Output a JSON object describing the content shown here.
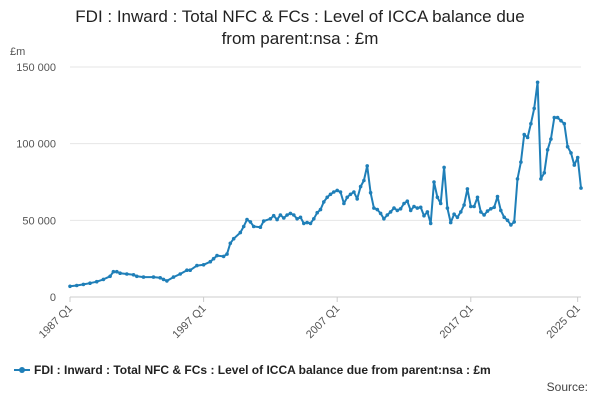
{
  "chart_data": {
    "type": "line",
    "title_line1": "FDI : Inward : Total NFC & FCs : Level of ICCA balance due",
    "title_line2": "from parent:nsa : £m",
    "y_unit": "£m",
    "ylim": [
      0,
      150000
    ],
    "y_ticks": [
      {
        "value": 0,
        "label": "0"
      },
      {
        "value": 50000,
        "label": "50 000"
      },
      {
        "value": 100000,
        "label": "100 000"
      },
      {
        "value": 150000,
        "label": "150 000"
      }
    ],
    "x_ticks": [
      {
        "quarter_index": 0,
        "label": "1987 Q1"
      },
      {
        "quarter_index": 40,
        "label": "1997 Q1"
      },
      {
        "quarter_index": 80,
        "label": "2007 Q1"
      },
      {
        "quarter_index": 120,
        "label": "2017 Q1"
      },
      {
        "quarter_index": 152,
        "label": "2025 Q1"
      }
    ],
    "x_start": "1987 Q1",
    "x_end": "2025 Q1",
    "grid": true,
    "legend_position": "bottom",
    "series": [
      {
        "name": "FDI : Inward : Total NFC & FCs : Level of ICCA balance due from parent:nsa : £m",
        "color": "#1f7fb8",
        "points": [
          [
            0,
            7000
          ],
          [
            2,
            7500
          ],
          [
            4,
            8200
          ],
          [
            6,
            9000
          ],
          [
            8,
            10000
          ],
          [
            10,
            11500
          ],
          [
            12,
            13500
          ],
          [
            13,
            16500
          ],
          [
            14,
            16500
          ],
          [
            15,
            15500
          ],
          [
            17,
            15000
          ],
          [
            19,
            14500
          ],
          [
            20,
            13500
          ],
          [
            22,
            13000
          ],
          [
            25,
            13000
          ],
          [
            27,
            12500
          ],
          [
            28,
            11500
          ],
          [
            29,
            10500
          ],
          [
            31,
            13000
          ],
          [
            33,
            15000
          ],
          [
            35,
            17500
          ],
          [
            36,
            17500
          ],
          [
            38,
            20500
          ],
          [
            40,
            21000
          ],
          [
            42,
            23000
          ],
          [
            43,
            25000
          ],
          [
            44,
            27000
          ],
          [
            46,
            26500
          ],
          [
            47,
            28000
          ],
          [
            48,
            35000
          ],
          [
            49,
            38000
          ],
          [
            51,
            42000
          ],
          [
            52,
            46000
          ],
          [
            53,
            50500
          ],
          [
            54,
            49000
          ],
          [
            55,
            46000
          ],
          [
            57,
            45500
          ],
          [
            58,
            49500
          ],
          [
            60,
            51000
          ],
          [
            61,
            53000
          ],
          [
            62,
            50500
          ],
          [
            63,
            53500
          ],
          [
            64,
            51500
          ],
          [
            65,
            53500
          ],
          [
            66,
            54500
          ],
          [
            67,
            53500
          ],
          [
            68,
            51000
          ],
          [
            69,
            52000
          ],
          [
            70,
            48000
          ],
          [
            71,
            48500
          ],
          [
            72,
            48000
          ],
          [
            73,
            51000
          ],
          [
            74,
            55000
          ],
          [
            75,
            57000
          ],
          [
            76,
            62000
          ],
          [
            77,
            65000
          ],
          [
            78,
            67000
          ],
          [
            79,
            68500
          ],
          [
            80,
            69500
          ],
          [
            81,
            68500
          ],
          [
            82,
            61000
          ],
          [
            83,
            65000
          ],
          [
            84,
            67000
          ],
          [
            85,
            68500
          ],
          [
            86,
            64000
          ],
          [
            87,
            72000
          ],
          [
            88,
            76000
          ],
          [
            89,
            85500
          ],
          [
            90,
            68000
          ],
          [
            91,
            58000
          ],
          [
            92,
            57000
          ],
          [
            93,
            54500
          ],
          [
            94,
            51000
          ],
          [
            95,
            53500
          ],
          [
            96,
            55500
          ],
          [
            97,
            58000
          ],
          [
            98,
            56500
          ],
          [
            99,
            57500
          ],
          [
            100,
            61000
          ],
          [
            101,
            62500
          ],
          [
            102,
            56500
          ],
          [
            103,
            59000
          ],
          [
            104,
            58000
          ],
          [
            105,
            58500
          ],
          [
            106,
            53000
          ],
          [
            107,
            55500
          ],
          [
            108,
            48000
          ],
          [
            109,
            75000
          ],
          [
            110,
            65000
          ],
          [
            111,
            61000
          ],
          [
            112,
            84500
          ],
          [
            113,
            58000
          ],
          [
            114,
            48500
          ],
          [
            115,
            54000
          ],
          [
            116,
            52000
          ],
          [
            117,
            55500
          ],
          [
            118,
            60000
          ],
          [
            119,
            70500
          ],
          [
            120,
            59000
          ],
          [
            121,
            59000
          ],
          [
            122,
            65000
          ],
          [
            123,
            55500
          ],
          [
            124,
            53500
          ],
          [
            125,
            56000
          ],
          [
            126,
            57500
          ],
          [
            127,
            58500
          ],
          [
            128,
            65500
          ],
          [
            129,
            56500
          ],
          [
            130,
            52000
          ],
          [
            131,
            50000
          ],
          [
            132,
            47000
          ],
          [
            133,
            49000
          ],
          [
            134,
            77000
          ],
          [
            135,
            88000
          ],
          [
            136,
            106000
          ],
          [
            137,
            104000
          ],
          [
            138,
            113000
          ],
          [
            139,
            123000
          ],
          [
            140,
            140000
          ],
          [
            141,
            77000
          ],
          [
            142,
            81000
          ],
          [
            143,
            96000
          ],
          [
            144,
            103000
          ],
          [
            145,
            117000
          ],
          [
            146,
            117000
          ],
          [
            147,
            115000
          ],
          [
            148,
            113000
          ],
          [
            149,
            98000
          ],
          [
            150,
            94000
          ],
          [
            151,
            86000
          ],
          [
            152,
            91000
          ],
          [
            153,
            71000
          ]
        ]
      }
    ]
  },
  "legend": {
    "label": "FDI : Inward : Total NFC & FCs : Level of ICCA balance due from parent:nsa : £m"
  },
  "footer": {
    "source_label": "Source:"
  }
}
